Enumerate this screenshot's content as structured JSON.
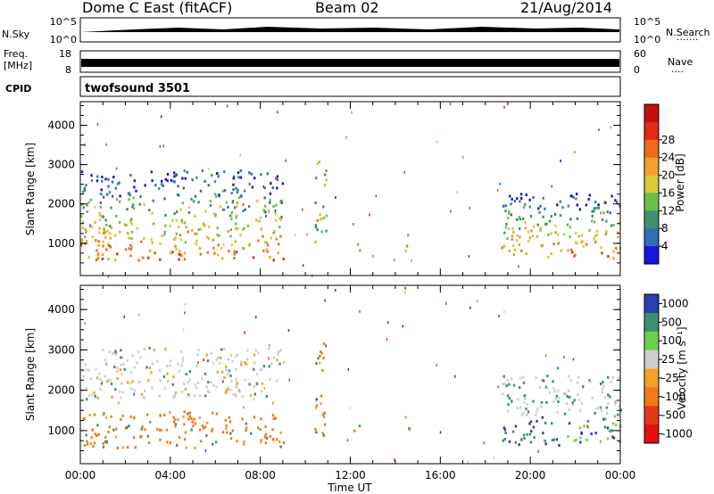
{
  "header": {
    "station": "Dome C East (fitACF)",
    "beam": "Beam 02",
    "date": "21/Aug/2014"
  },
  "strip": {
    "nsky_label": "N.Sky",
    "nsearch_label": "N.Search",
    "nsky_ticks": [
      "10^5",
      "10^0"
    ],
    "nsearch_ticks": [
      "10^5",
      "10^0"
    ],
    "freq_label_top": "Freq.",
    "freq_label_unit": "[MHz]",
    "freq_ticks": [
      "18",
      "8"
    ],
    "nave_label": "Nave",
    "nave_ticks": [
      "60",
      "0"
    ],
    "cpid_label": "CPID",
    "cpid_value": "twofsound 3501"
  },
  "chart_data": [
    {
      "type": "heatmap",
      "ylabel": "Slant Range [km]",
      "xlabel": "Time UT",
      "x_ticks": [
        "00:00",
        "04:00",
        "08:00",
        "12:00",
        "16:00",
        "20:00",
        "00:00"
      ],
      "x_hours": [
        0,
        4,
        8,
        12,
        16,
        20,
        24
      ],
      "xlim": [
        0,
        24
      ],
      "y_ticks": [
        1000,
        2000,
        3000,
        4000
      ],
      "ylim": [
        180,
        4600
      ],
      "colorbar_label": "Power [dB]",
      "colorbar_ticks": [
        "4",
        "8",
        "12",
        "16",
        "20",
        "24",
        "28"
      ],
      "colorbar_colors": [
        "#1515e0",
        "#2f6fb0",
        "#3f8f6f",
        "#6cbf4a",
        "#d8c83a",
        "#f2a12a",
        "#f06c1a",
        "#e12a1a",
        "#c40f0f"
      ],
      "echo_regions": [
        {
          "t0": 0.0,
          "t1": 9.0,
          "r0": 600,
          "r1": 2900,
          "level": "high"
        },
        {
          "t0": 10.4,
          "t1": 10.9,
          "r0": 1000,
          "r1": 3200,
          "level": "mid"
        },
        {
          "t0": 12.1,
          "t1": 12.4,
          "r0": 850,
          "r1": 1150,
          "level": "mid"
        },
        {
          "t0": 14.4,
          "t1": 14.7,
          "r0": 800,
          "r1": 1400,
          "level": "mid"
        },
        {
          "t0": 18.7,
          "t1": 24.0,
          "r0": 650,
          "r1": 2300,
          "level": "high"
        }
      ]
    },
    {
      "type": "heatmap",
      "ylabel": "Slant Range [km]",
      "xlabel": "Time UT",
      "x_ticks": [
        "00:00",
        "04:00",
        "08:00",
        "12:00",
        "16:00",
        "20:00",
        "00:00"
      ],
      "x_hours": [
        0,
        4,
        8,
        12,
        16,
        20,
        24
      ],
      "xlim": [
        0,
        24
      ],
      "y_ticks": [
        1000,
        2000,
        3000,
        4000
      ],
      "ylim": [
        180,
        4600
      ],
      "colorbar_label": "Velocity [m s⁻¹]",
      "colorbar_ticks": [
        "1000",
        "500",
        "100",
        "25",
        "-25",
        "-100",
        "-500",
        "-1000"
      ],
      "colorbar_colors": [
        "#2940b0",
        "#3f8f6f",
        "#6cd04a",
        "#cfcfcf",
        "#f2a12a",
        "#f07a1a",
        "#e33a1a",
        "#e10f0f"
      ],
      "echo_regions": [
        {
          "t0": 0.0,
          "t1": 9.0,
          "r0": 600,
          "r1": 1500,
          "level": "neg"
        },
        {
          "t0": 0.0,
          "t1": 9.0,
          "r0": 1800,
          "r1": 3100,
          "level": "zero"
        },
        {
          "t0": 10.4,
          "t1": 10.9,
          "r0": 900,
          "r1": 3200,
          "level": "neg"
        },
        {
          "t0": 12.1,
          "t1": 12.4,
          "r0": 850,
          "r1": 1150,
          "level": "neg"
        },
        {
          "t0": 14.4,
          "t1": 14.7,
          "r0": 800,
          "r1": 1400,
          "level": "neg"
        },
        {
          "t0": 18.7,
          "t1": 24.0,
          "r0": 650,
          "r1": 2400,
          "level": "pos"
        }
      ]
    }
  ]
}
